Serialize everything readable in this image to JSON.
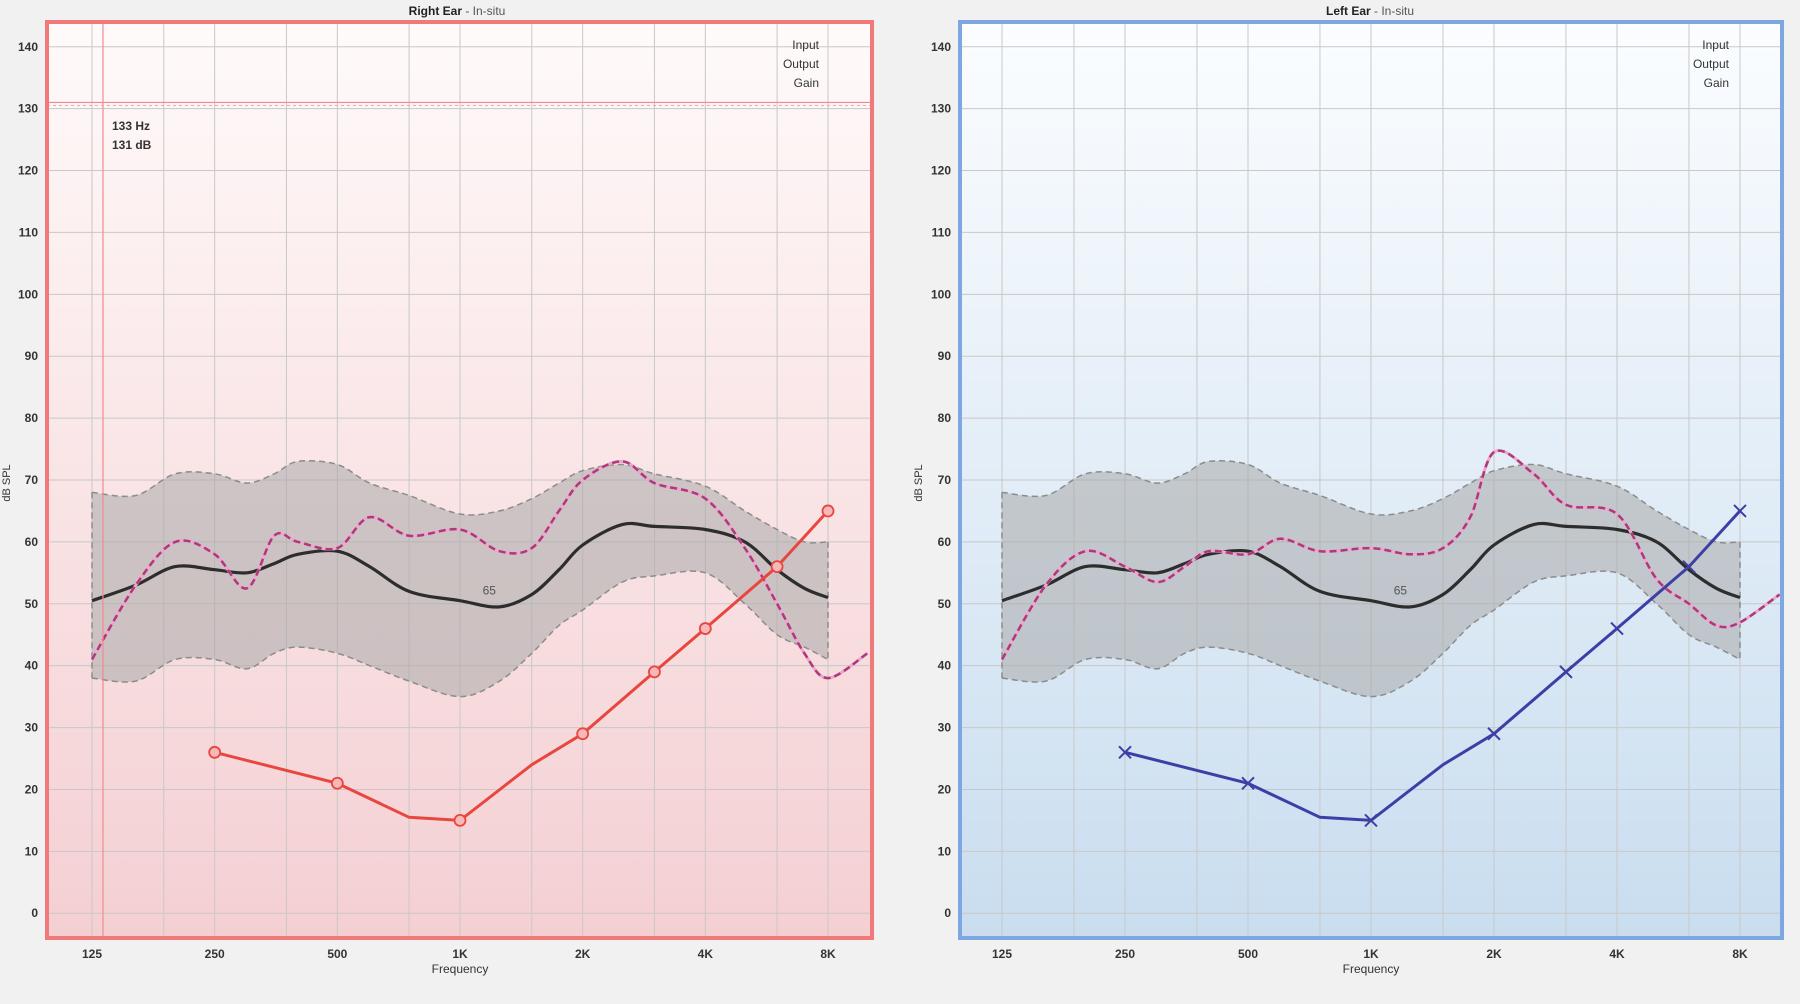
{
  "chart_data": [
    {
      "type": "line",
      "title": "Right Ear",
      "subtitle": "In-situ",
      "xlabel": "Frequency",
      "ylabel": "dB SPL",
      "x_scale": "log",
      "x_ticks": [
        125,
        250,
        500,
        1000,
        2000,
        4000,
        8000
      ],
      "x_tick_labels": [
        "125",
        "250",
        "500",
        "1K",
        "2K",
        "4K",
        "8K"
      ],
      "ylim": [
        -4,
        144
      ],
      "y_ticks": [
        0,
        10,
        20,
        30,
        40,
        50,
        60,
        70,
        80,
        90,
        100,
        110,
        120,
        130,
        140
      ],
      "grid": true,
      "legend": [
        "Input",
        "Output",
        "Gain"
      ],
      "legend_position": "top-right",
      "cursor_readout": [
        "133 Hz",
        "131 dB"
      ],
      "cursor": {
        "x": 133,
        "y": 131
      },
      "area_label": "65",
      "colors": {
        "frame": "#f07a7a",
        "threshold": "#e8463f",
        "response": "#b0387c",
        "lte": "#2d2d2d",
        "band": "#a9a9a9"
      },
      "marker": "circle",
      "series": [
        {
          "role": "threshold",
          "x": [
            250,
            500,
            750,
            1000,
            1500,
            2000,
            3000,
            4000,
            6000,
            8000
          ],
          "y": [
            26,
            21,
            15.5,
            15,
            24,
            29,
            39,
            46,
            56,
            65
          ]
        },
        {
          "role": "response",
          "x": [
            125,
            160,
            200,
            250,
            300,
            350,
            400,
            500,
            600,
            750,
            1000,
            1250,
            1500,
            1750,
            2000,
            2500,
            3000,
            4000,
            5000,
            6000,
            7000,
            8000,
            10000
          ],
          "y": [
            41,
            53,
            60,
            58,
            52.5,
            61,
            60,
            59,
            64,
            61,
            62,
            58.5,
            59,
            65,
            70,
            73,
            69.5,
            67,
            59,
            50,
            42,
            38,
            42
          ]
        },
        {
          "role": "lte-median",
          "x": [
            125,
            160,
            200,
            250,
            300,
            350,
            400,
            500,
            600,
            750,
            1000,
            1250,
            1500,
            1750,
            2000,
            2500,
            3000,
            4000,
            5000,
            6000,
            7000,
            8000
          ],
          "y": [
            50.5,
            53,
            56,
            55.5,
            55,
            56.5,
            58,
            58.5,
            56,
            52,
            50.5,
            49.5,
            51.5,
            55.5,
            59.5,
            62.8,
            62.5,
            62,
            60,
            55.5,
            52.5,
            51
          ]
        },
        {
          "role": "lte-upper",
          "x": [
            125,
            160,
            200,
            250,
            300,
            350,
            400,
            500,
            600,
            750,
            1000,
            1250,
            1500,
            1750,
            2000,
            2500,
            3000,
            4000,
            5000,
            6000,
            7000,
            8000
          ],
          "y": [
            68,
            67.5,
            71,
            71,
            69.5,
            71,
            73,
            72.5,
            69.5,
            67.5,
            64.5,
            65,
            67,
            69.5,
            71.5,
            72.5,
            71,
            69,
            65,
            62,
            60,
            60
          ]
        },
        {
          "role": "lte-lower",
          "x": [
            125,
            160,
            200,
            250,
            300,
            350,
            400,
            500,
            600,
            750,
            1000,
            1250,
            1500,
            1750,
            2000,
            2500,
            3000,
            4000,
            5000,
            6000,
            7000,
            8000
          ],
          "y": [
            38,
            37.5,
            41,
            41,
            39.5,
            42,
            43,
            42,
            40,
            37.5,
            35,
            37.5,
            42,
            46.5,
            49,
            53.5,
            54.5,
            55,
            50,
            45,
            43,
            41
          ]
        }
      ]
    },
    {
      "type": "line",
      "title": "Left Ear",
      "subtitle": "In-situ",
      "xlabel": "Frequency",
      "ylabel": "dB SPL",
      "x_scale": "log",
      "x_ticks": [
        125,
        250,
        500,
        1000,
        2000,
        4000,
        8000
      ],
      "x_tick_labels": [
        "125",
        "250",
        "500",
        "1K",
        "2K",
        "4K",
        "8K"
      ],
      "ylim": [
        -4,
        144
      ],
      "y_ticks": [
        0,
        10,
        20,
        30,
        40,
        50,
        60,
        70,
        80,
        90,
        100,
        110,
        120,
        130,
        140
      ],
      "grid": true,
      "legend": [
        "Input",
        "Output",
        "Gain"
      ],
      "legend_position": "top-right",
      "area_label": "65",
      "colors": {
        "frame": "#7ea6e0",
        "threshold": "#3d3fa6",
        "response": "#b0387c",
        "lte": "#2d2d2d",
        "band": "#a9a9a9"
      },
      "marker": "cross",
      "series": [
        {
          "role": "threshold",
          "x": [
            250,
            500,
            750,
            1000,
            1500,
            2000,
            3000,
            4000,
            6000,
            8000
          ],
          "y": [
            26,
            21,
            15.5,
            15,
            24,
            29,
            39,
            46,
            56,
            65
          ]
        },
        {
          "role": "response",
          "x": [
            125,
            160,
            200,
            250,
            300,
            350,
            400,
            500,
            600,
            750,
            1000,
            1250,
            1500,
            1750,
            2000,
            2500,
            3000,
            4000,
            5000,
            6000,
            7000,
            8000,
            10000
          ],
          "y": [
            41,
            53,
            58.5,
            56,
            53.5,
            56,
            58.5,
            58,
            60.5,
            58.5,
            59,
            58,
            59,
            64,
            74.5,
            71,
            66,
            64.5,
            54,
            50,
            46.5,
            47,
            51.5
          ]
        },
        {
          "role": "lte-median",
          "x": [
            125,
            160,
            200,
            250,
            300,
            350,
            400,
            500,
            600,
            750,
            1000,
            1250,
            1500,
            1750,
            2000,
            2500,
            3000,
            4000,
            5000,
            6000,
            7000,
            8000
          ],
          "y": [
            50.5,
            53,
            56,
            55.5,
            55,
            56.5,
            58,
            58.5,
            56,
            52,
            50.5,
            49.5,
            51.5,
            55.5,
            59.5,
            62.8,
            62.5,
            62,
            60,
            55.5,
            52.5,
            51
          ]
        },
        {
          "role": "lte-upper",
          "x": [
            125,
            160,
            200,
            250,
            300,
            350,
            400,
            500,
            600,
            750,
            1000,
            1250,
            1500,
            1750,
            2000,
            2500,
            3000,
            4000,
            5000,
            6000,
            7000,
            8000
          ],
          "y": [
            68,
            67.5,
            71,
            71,
            69.5,
            71,
            73,
            72.5,
            69.5,
            67.5,
            64.5,
            65,
            67,
            69.5,
            71.5,
            72.5,
            71,
            69,
            65,
            62,
            60,
            60
          ]
        },
        {
          "role": "lte-lower",
          "x": [
            125,
            160,
            200,
            250,
            300,
            350,
            400,
            500,
            600,
            750,
            1000,
            1250,
            1500,
            1750,
            2000,
            2500,
            3000,
            4000,
            5000,
            6000,
            7000,
            8000
          ],
          "y": [
            38,
            37.5,
            41,
            41,
            39.5,
            42,
            43,
            42,
            40,
            37.5,
            35,
            37.5,
            42,
            46.5,
            49,
            53.5,
            54.5,
            55,
            50,
            45,
            43,
            41
          ]
        }
      ]
    }
  ]
}
